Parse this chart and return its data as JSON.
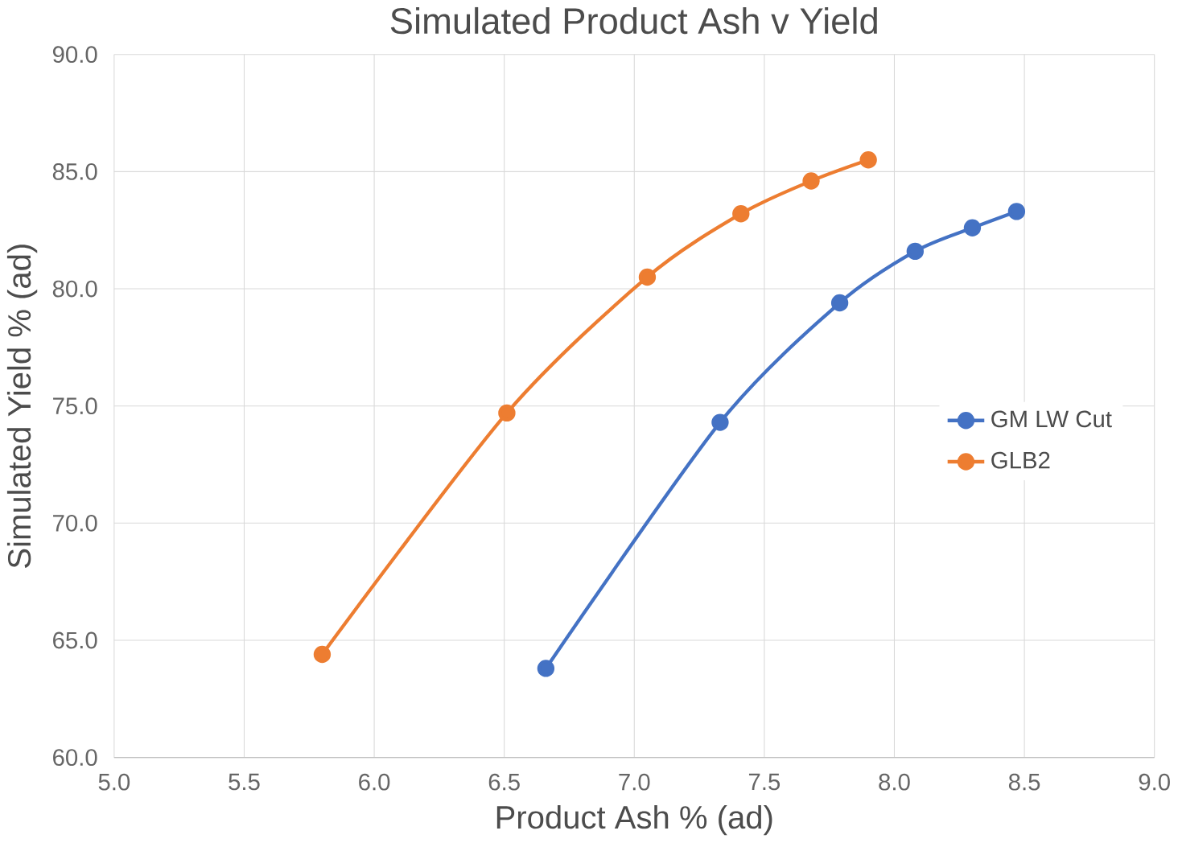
{
  "chart_data": {
    "type": "line",
    "title": "Simulated Product Ash v Yield",
    "xlabel": "Product Ash % (ad)",
    "ylabel": "Simulated Yield % (ad)",
    "xlim": [
      5.0,
      9.0
    ],
    "xticks": [
      {
        "value": 5.0,
        "label": "5.0"
      },
      {
        "value": 5.5,
        "label": "5.5"
      },
      {
        "value": 6.0,
        "label": "6.0"
      },
      {
        "value": 6.5,
        "label": "6.5"
      },
      {
        "value": 7.0,
        "label": "7.0"
      },
      {
        "value": 7.5,
        "label": "7.5"
      },
      {
        "value": 8.0,
        "label": "8.0"
      },
      {
        "value": 8.5,
        "label": "8.5"
      },
      {
        "value": 9.0,
        "label": "9.0"
      }
    ],
    "ylim": [
      60.0,
      90.0
    ],
    "yticks": [
      {
        "value": 60.0,
        "label": "60.0"
      },
      {
        "value": 65.0,
        "label": "65.0"
      },
      {
        "value": 70.0,
        "label": "70.0"
      },
      {
        "value": 75.0,
        "label": "75.0"
      },
      {
        "value": 80.0,
        "label": "80.0"
      },
      {
        "value": 85.0,
        "label": "85.0"
      },
      {
        "value": 90.0,
        "label": "90.0"
      }
    ],
    "grid": true,
    "legend": "right",
    "marker": "circle",
    "line_style": "solid",
    "series": [
      {
        "name": "GM LW Cut",
        "color": "#4472c4",
        "x": [
          6.66,
          7.33,
          7.79,
          8.08,
          8.3,
          8.47
        ],
        "values": [
          63.8,
          74.3,
          79.4,
          81.6,
          82.6,
          83.3
        ]
      },
      {
        "name": "GLB2",
        "color": "#ed7d31",
        "x": [
          5.8,
          6.51,
          7.05,
          7.41,
          7.68,
          7.9
        ],
        "values": [
          64.4,
          74.7,
          80.5,
          83.2,
          84.6,
          85.5
        ]
      }
    ]
  }
}
